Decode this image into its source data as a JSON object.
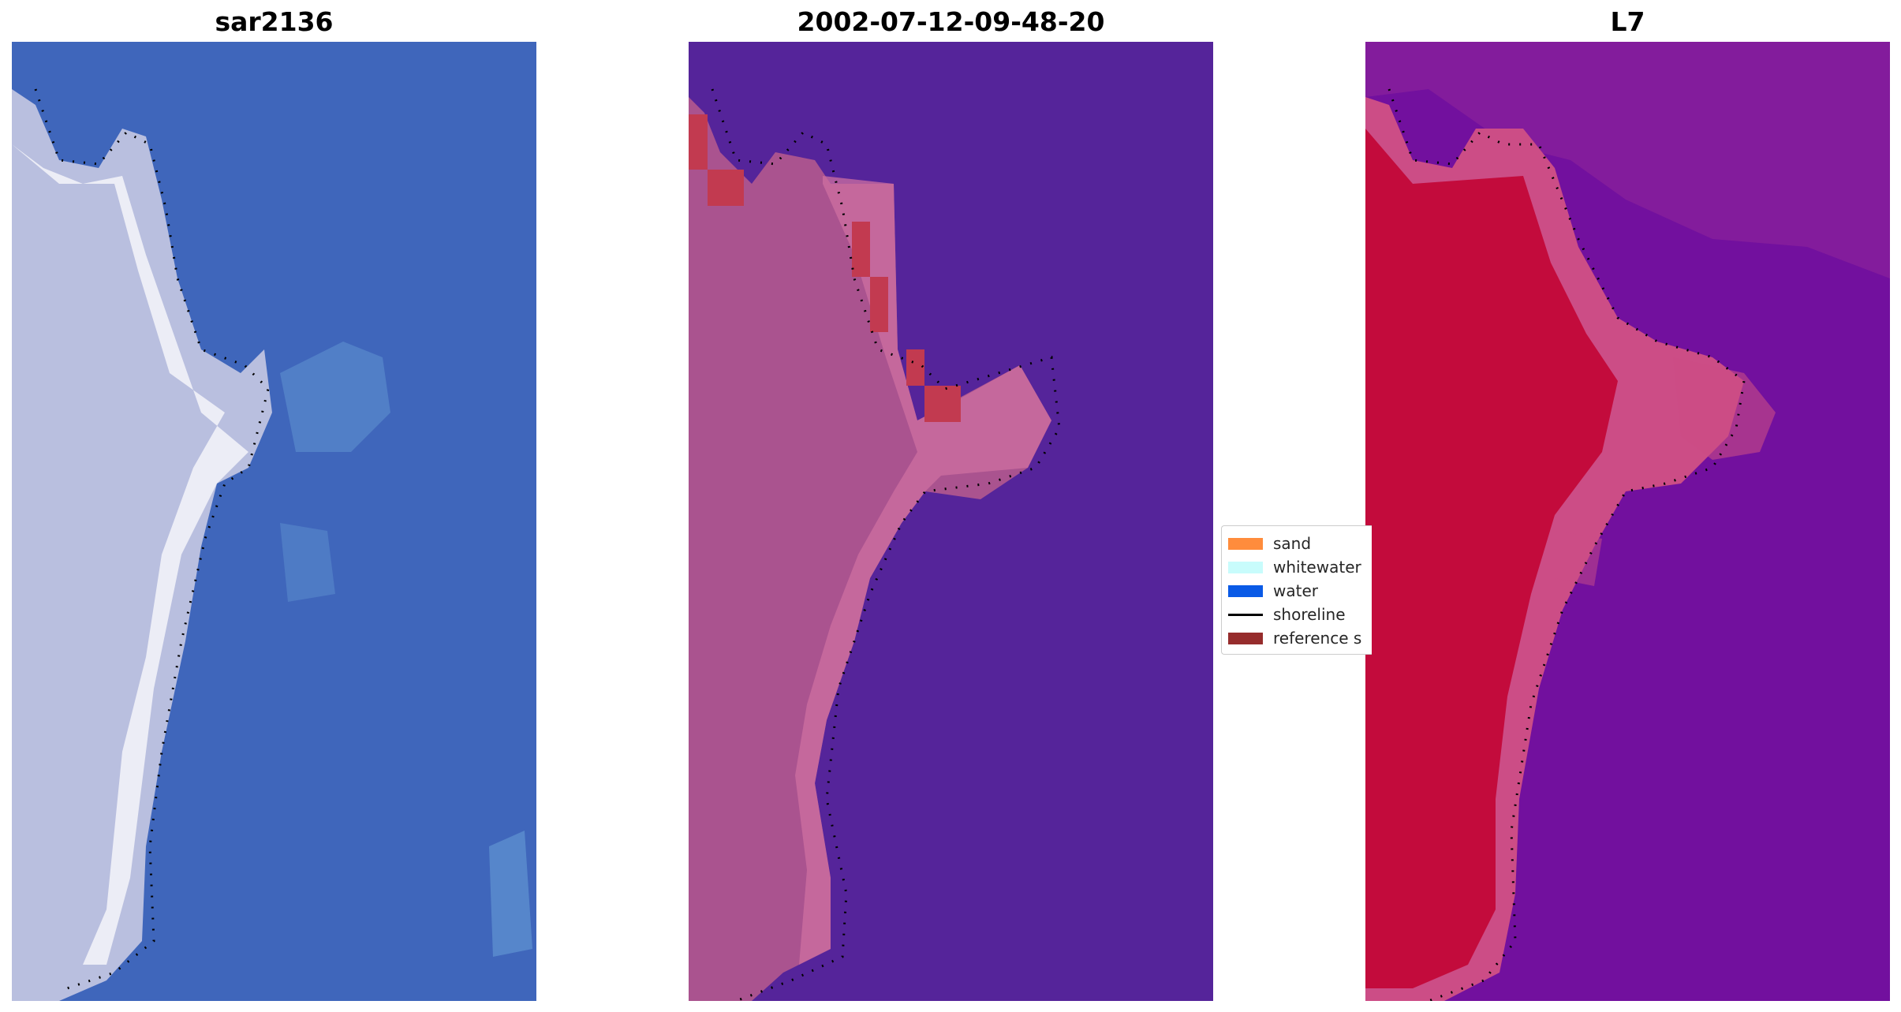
{
  "panels": [
    {
      "title": "sar2136",
      "base_color": "#3f66bb",
      "land_color": "#b9bfdf",
      "highlight_color": "#f2f2f8",
      "shallow_color": "#5d8fcf"
    },
    {
      "title": "2002-07-12-09-48-20",
      "base_color": "#55249a",
      "land_color": "#aa538f",
      "edge_color": "#cd6fa0",
      "reference_color": "#c23a50"
    },
    {
      "title": "L7",
      "base_color": "#72109e",
      "land_color": "#c30b3c",
      "edge_color": "#cc4d86",
      "mid_color": "#9a2c9a"
    }
  ],
  "legend": {
    "items": [
      {
        "label": "sand",
        "color": "#ff8c3c",
        "kind": "patch"
      },
      {
        "label": "whitewater",
        "color": "#c8fcfc",
        "kind": "patch"
      },
      {
        "label": "water",
        "color": "#0a5ae6",
        "kind": "patch"
      },
      {
        "label": "shoreline",
        "color": "#000000",
        "kind": "line"
      },
      {
        "label": "reference s",
        "color": "#962c2c",
        "kind": "patch"
      }
    ]
  }
}
